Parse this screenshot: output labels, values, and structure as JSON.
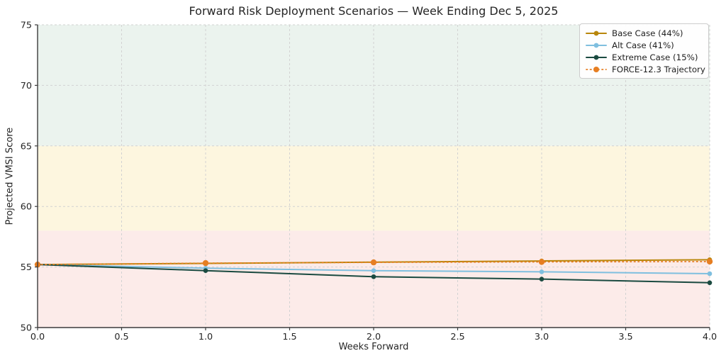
{
  "chart_data": {
    "type": "line",
    "title": "Forward Risk Deployment Scenarios — Week Ending Dec 5, 2025",
    "xlabel": "Weeks Forward",
    "ylabel": "Projected VMSI Score",
    "xlim": [
      0,
      4
    ],
    "ylim": [
      50,
      75
    ],
    "grid": true,
    "grid_style": "dashed",
    "legend_position": "upper right",
    "xtick_values": [
      0.0,
      0.5,
      1.0,
      1.5,
      2.0,
      2.5,
      3.0,
      3.5,
      4.0
    ],
    "xtick_labels": [
      "0.0",
      "0.5",
      "1.0",
      "1.5",
      "2.0",
      "2.5",
      "3.0",
      "3.5",
      "4.0"
    ],
    "ytick_values": [
      50,
      55,
      60,
      65,
      70,
      75
    ],
    "ytick_labels": [
      "50",
      "55",
      "60",
      "65",
      "70",
      "75"
    ],
    "x": [
      0,
      1,
      2,
      3,
      4
    ],
    "bands": [
      {
        "name": "safe-zone",
        "from": 65,
        "to": 75,
        "color": "#ebf3ee"
      },
      {
        "name": "caution-zone",
        "from": 58,
        "to": 65,
        "color": "#fdf6df"
      },
      {
        "name": "risk-zone",
        "from": 50,
        "to": 58,
        "color": "#fcebe9"
      }
    ],
    "series": [
      {
        "name": "Base Case (44%)",
        "slug": "base-case",
        "color": "#b8860b",
        "style": "solid",
        "marker": "circle",
        "values": [
          55.2,
          55.3,
          55.4,
          55.5,
          55.6
        ]
      },
      {
        "name": "Alt Case (41%)",
        "slug": "alt-case",
        "color": "#7fbfdf",
        "style": "solid",
        "marker": "circle",
        "values": [
          55.2,
          54.9,
          54.7,
          54.6,
          54.45
        ]
      },
      {
        "name": "Extreme Case (15%)",
        "slug": "extreme-case",
        "color": "#1a4a40",
        "style": "solid",
        "marker": "circle",
        "values": [
          55.2,
          54.7,
          54.2,
          54.0,
          53.7
        ]
      },
      {
        "name": "FORCE-12.3 Trajectory",
        "slug": "force-12-3",
        "color": "#e67e22",
        "style": "dotted",
        "marker": "circle",
        "values": [
          55.2,
          55.32,
          55.38,
          55.42,
          55.45
        ]
      }
    ],
    "colors": {
      "spine": "#3b3b3b",
      "gridline": "#d2d2d2",
      "tick_text": "#262626",
      "background": "#ffffff"
    }
  }
}
